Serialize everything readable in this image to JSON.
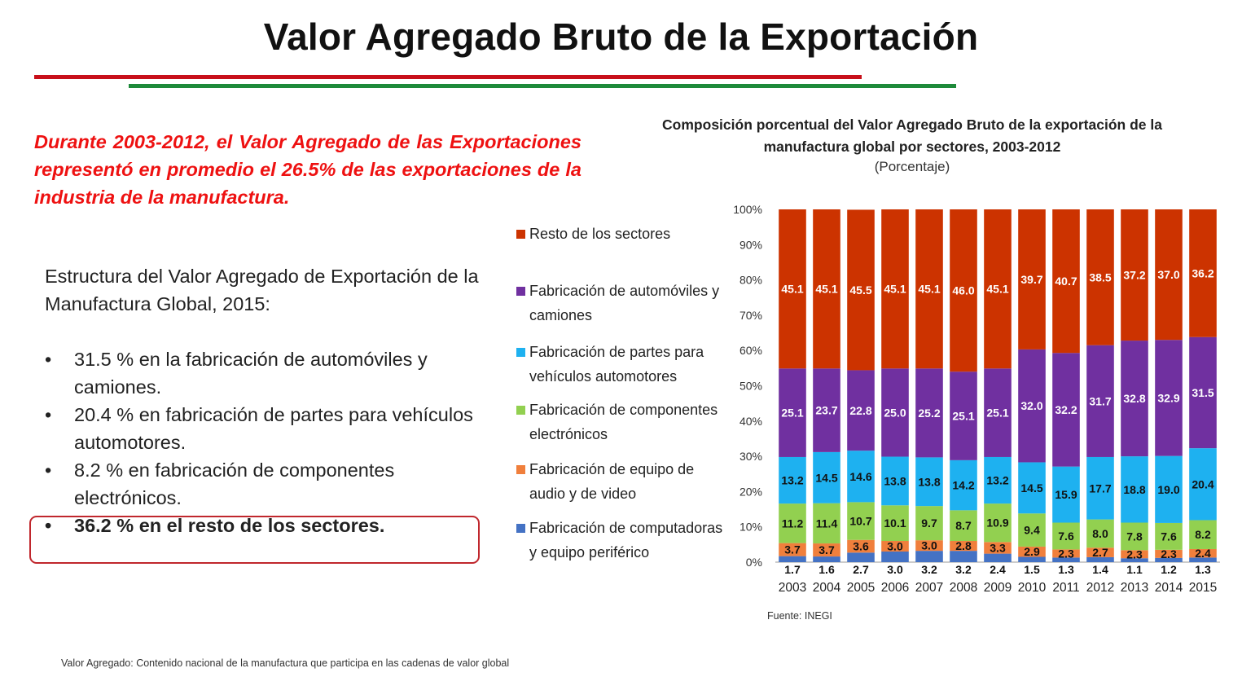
{
  "slide": {
    "title": "Valor Agregado Bruto de la Exportación",
    "highlight": "Durante 2003-2012, el Valor Agregado de las Exportaciones representó en promedio el 26.5% de las exportaciones de la industria de la manufactura.",
    "structure_heading": "Estructura del Valor Agregado de Exportación de la Manufactura Global, 2015:",
    "bullet_symbol": "•",
    "bullets": [
      "31.5 % en la fabricación de automóviles y camiones.",
      "20.4 % en fabricación de partes para vehículos automotores.",
      "8.2 % en fabricación de componentes electrónicos.",
      "36.2 % en el resto de los sectores."
    ],
    "source": "Fuente: INEGI",
    "footnote": "Valor Agregado: Contenido nacional de la manufactura que participa en las cadenas de valor global"
  },
  "colors": {
    "rule_red": "#c8101a",
    "rule_green": "#1e8a3a",
    "highlight_text": "#ee1111",
    "box_border": "#c0272d"
  },
  "chart_data": {
    "type": "bar",
    "stacked": true,
    "title": "Composición porcentual del Valor Agregado Bruto de la exportación de la manufactura global por sectores, 2003-2012",
    "subtitle": "(Porcentaje)",
    "categories": [
      "2003",
      "2004",
      "2005",
      "2006",
      "2007",
      "2008",
      "2009",
      "2010",
      "2011",
      "2012",
      "2013",
      "2014",
      "2015"
    ],
    "y_ticks": [
      "0%",
      "10%",
      "20%",
      "30%",
      "40%",
      "50%",
      "60%",
      "70%",
      "80%",
      "90%",
      "100%"
    ],
    "ylim": [
      0,
      100
    ],
    "legend_position": "left",
    "series": [
      {
        "name": "Fabricación de computadoras y equipo periférico",
        "color": "#4472c4",
        "values": [
          1.7,
          1.6,
          2.7,
          3.0,
          3.2,
          3.2,
          2.4,
          1.5,
          1.3,
          1.4,
          1.1,
          1.2,
          1.3
        ],
        "labels": [
          "1.7",
          "1.6",
          "2.7",
          "3.0",
          "3.2",
          "3.2",
          "2.4",
          "1.5",
          "1.3",
          "1.4",
          "1.1",
          "1.2",
          "1.3"
        ]
      },
      {
        "name": "Fabricación de equipo de audio y de video",
        "color": "#f07f3c",
        "values": [
          3.7,
          3.7,
          3.6,
          3.0,
          3.0,
          2.8,
          3.3,
          2.9,
          2.3,
          2.7,
          2.3,
          2.3,
          2.4
        ],
        "labels": [
          "3.7",
          "3.7",
          "3.6",
          "3.0",
          "3.0",
          "2.8",
          "3.3",
          "2.9",
          "2.3",
          "2.7",
          "2.3",
          "2.3",
          "2.4"
        ]
      },
      {
        "name": "Fabricación de componentes electrónicos",
        "color": "#92d050",
        "values": [
          11.2,
          11.4,
          10.7,
          10.1,
          9.7,
          8.7,
          10.9,
          9.4,
          7.6,
          8.0,
          7.8,
          7.6,
          8.2
        ],
        "labels": [
          "11.2",
          "11.4",
          "10.7",
          "10.1",
          "9.7",
          "8.7",
          "10.9",
          "9.4",
          "7.6",
          "8.0",
          "7.8",
          "7.6",
          "8.2"
        ]
      },
      {
        "name": "Fabricación de partes para vehículos automotores",
        "color": "#1eb1f0",
        "values": [
          13.2,
          14.5,
          14.6,
          13.8,
          13.8,
          14.2,
          13.2,
          14.5,
          15.9,
          17.7,
          18.8,
          19.0,
          20.4
        ],
        "labels": [
          "13.2",
          "14.5",
          "14.6",
          "13.8",
          "13.8",
          "14.2",
          "13.2",
          "14.5",
          "15.9",
          "17.7",
          "18.8",
          "19.0",
          "20.4"
        ]
      },
      {
        "name": "Fabricación de automóviles y camiones",
        "color": "#7030a0",
        "values": [
          25.1,
          23.7,
          22.8,
          25.0,
          25.2,
          25.1,
          25.1,
          32.0,
          32.2,
          31.7,
          32.8,
          32.9,
          31.5
        ],
        "labels": [
          "25.1",
          "23.7",
          "22.8",
          "25.0",
          "25.2",
          "25.1",
          "25.1",
          "32.0",
          "32.2",
          "31.7",
          "32.8",
          "32.9",
          "31.5"
        ]
      },
      {
        "name": "Resto de los sectores",
        "color": "#cc3300",
        "values": [
          45.1,
          45.1,
          45.5,
          45.1,
          45.1,
          46.0,
          45.1,
          39.7,
          40.7,
          38.5,
          37.2,
          37.0,
          36.2
        ],
        "labels": [
          "45.1",
          "45.1",
          "45.5",
          "45.1",
          "45.1",
          "46.0",
          "45.1",
          "39.7",
          "40.7",
          "38.5",
          "37.2",
          "37.0",
          "36.2"
        ]
      }
    ],
    "legend_order": [
      "Resto de los sectores",
      "Fabricación de automóviles y camiones",
      "Fabricación de partes para vehículos automotores",
      "Fabricación de componentes electrónicos",
      "Fabricación de equipo de audio y de video",
      "Fabricación de computadoras y equipo periférico"
    ]
  }
}
